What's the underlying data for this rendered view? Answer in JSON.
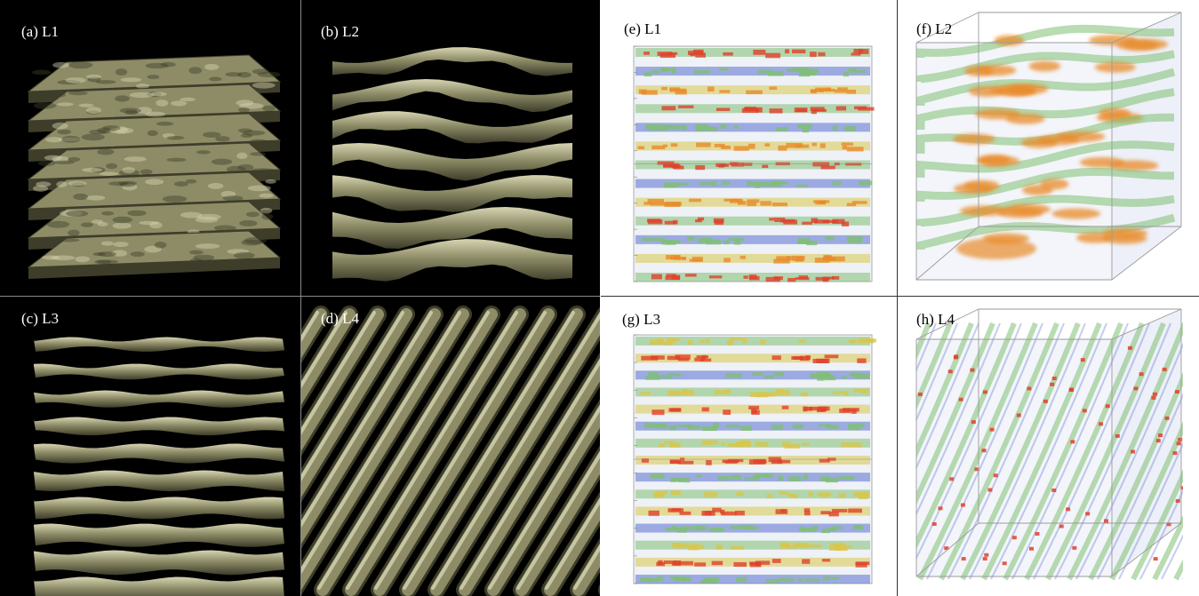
{
  "figure": {
    "panels": [
      {
        "id": "a",
        "label": "(a) L1",
        "style": "surface",
        "structure": "flat-layers"
      },
      {
        "id": "b",
        "label": "(b) L2",
        "style": "surface",
        "structure": "wavy-layers"
      },
      {
        "id": "c",
        "label": "(c) L3",
        "style": "surface",
        "structure": "thin-layers"
      },
      {
        "id": "d",
        "label": "(d) L4",
        "style": "surface",
        "structure": "diagonal-rods"
      },
      {
        "id": "e",
        "label": "(e) L1",
        "style": "volume",
        "structure": "flat-layers"
      },
      {
        "id": "f",
        "label": "(f) L2",
        "style": "volume",
        "structure": "wavy-layers"
      },
      {
        "id": "g",
        "label": "(g) L3",
        "style": "volume",
        "structure": "thin-layers"
      },
      {
        "id": "h",
        "label": "(h) L4",
        "style": "volume",
        "structure": "diagonal-rods"
      }
    ],
    "colors": {
      "surface_background": "#000000",
      "surface_fill": "#8d8c67",
      "surface_highlight": "#d6d4b2",
      "surface_shadow": "#3e3d2a",
      "divider_dark": "#8a8a8a",
      "divider_light": "#333333",
      "volume_green": "#7fbf73",
      "volume_blue": "#5a6fd0",
      "volume_orange": "#e88b2a",
      "volume_red": "#e0412a",
      "volume_yellow": "#d9c64a"
    }
  }
}
